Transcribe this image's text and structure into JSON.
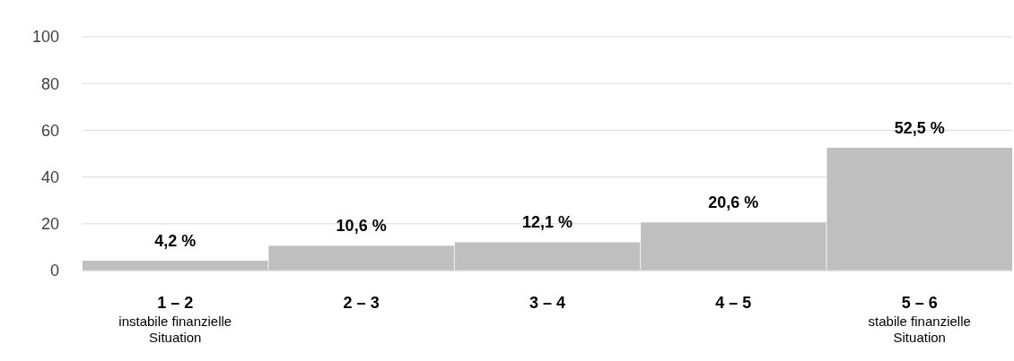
{
  "chart_data": {
    "type": "bar",
    "categories": [
      "1 – 2",
      "2 – 3",
      "3 – 4",
      "4 – 5",
      "5 – 6"
    ],
    "values": [
      4.2,
      10.6,
      12.1,
      20.6,
      52.5
    ],
    "value_labels": [
      "4,2 %",
      "10,6 %",
      "12,1 %",
      "20,6 %",
      "52,5 %"
    ],
    "color": "#bfbfbf",
    "ylim": [
      0,
      100
    ],
    "yticks": [
      0,
      20,
      40,
      60,
      80,
      100
    ],
    "grid": "y",
    "annotations": [
      "instabile finanzielle Situation",
      "stabile finanzielle Situation"
    ]
  }
}
